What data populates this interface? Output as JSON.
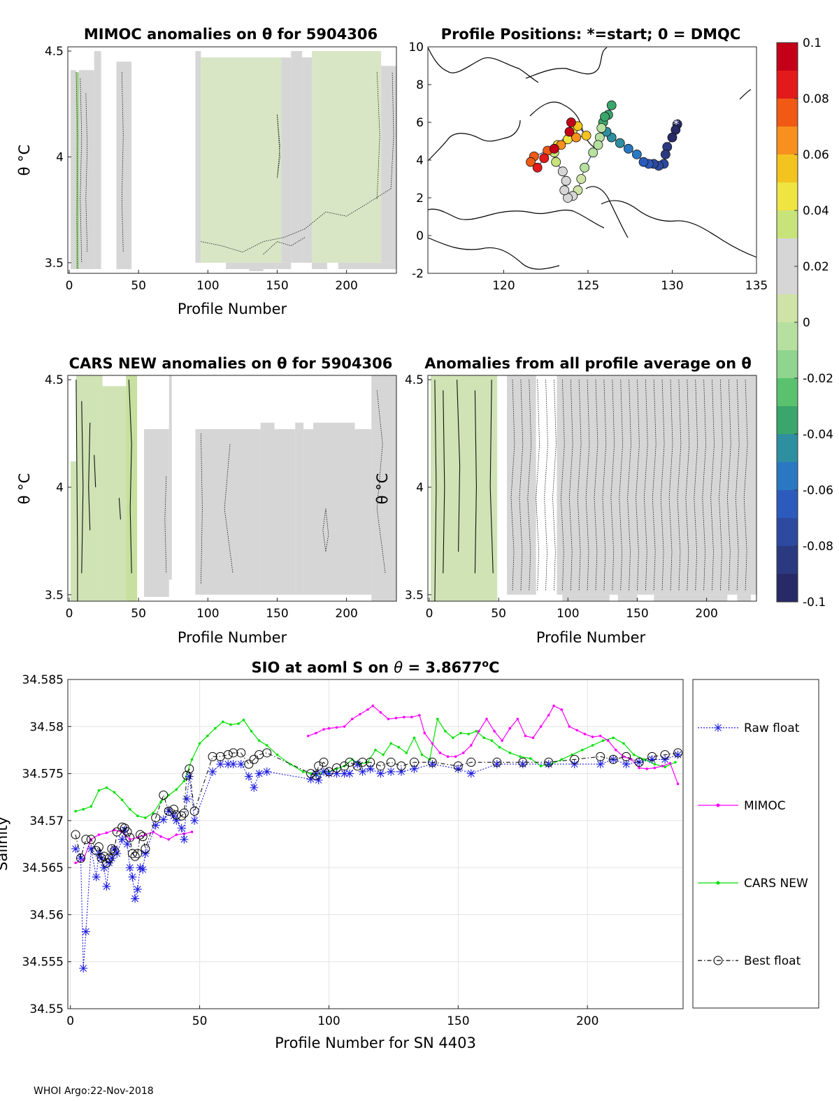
{
  "chart_data": [
    {
      "type": "heatmap",
      "title": "MIMOC anomalies on θ  for 5904306",
      "xlabel": "Profile Number",
      "ylabel": "θ °C",
      "xlim": [
        -1,
        236
      ],
      "ylim": [
        3.45,
        4.52
      ],
      "xticks": [
        0,
        50,
        100,
        150,
        200
      ],
      "yticks": [
        3.5,
        4,
        4.5
      ],
      "ytick_labels": [
        "3.5",
        "4",
        "4.5"
      ]
    },
    {
      "type": "scatter",
      "title": "Profile Positions: *=start; 0 = DMQC",
      "xlim": [
        115.5,
        135
      ],
      "ylim": [
        -2,
        10
      ],
      "xticks": [
        120,
        125,
        130,
        135
      ],
      "yticks": [
        -2,
        0,
        2,
        4,
        6,
        8,
        10
      ],
      "track": [
        [
          130.3,
          5.9
        ],
        [
          130.2,
          5.6
        ],
        [
          130.0,
          5.2
        ],
        [
          129.7,
          4.7
        ],
        [
          129.6,
          4.3
        ],
        [
          129.5,
          3.8
        ],
        [
          129.2,
          3.7
        ],
        [
          128.9,
          3.8
        ],
        [
          128.6,
          3.8
        ],
        [
          128.3,
          3.9
        ],
        [
          127.9,
          4.3
        ],
        [
          127.4,
          4.6
        ],
        [
          126.9,
          4.9
        ],
        [
          126.4,
          5.2
        ],
        [
          126.1,
          5.5
        ],
        [
          125.9,
          6.0
        ],
        [
          126.2,
          6.4
        ],
        [
          126.4,
          6.9
        ],
        [
          126.0,
          6.3
        ],
        [
          125.8,
          5.7
        ],
        [
          125.7,
          5.2
        ],
        [
          125.6,
          4.8
        ],
        [
          125.3,
          4.4
        ],
        [
          124.8,
          3.6
        ],
        [
          124.6,
          3.0
        ],
        [
          124.4,
          2.4
        ],
        [
          124.1,
          2.1
        ],
        [
          123.8,
          2.0
        ],
        [
          123.6,
          2.4
        ],
        [
          123.7,
          2.9
        ],
        [
          123.5,
          3.4
        ],
        [
          123.1,
          3.9
        ],
        [
          123.0,
          4.4
        ],
        [
          123.2,
          4.8
        ],
        [
          123.8,
          5.1
        ],
        [
          124.1,
          5.6
        ],
        [
          124.4,
          5.8
        ],
        [
          124.9,
          5.3
        ],
        [
          124.3,
          5.2
        ],
        [
          123.4,
          4.8
        ],
        [
          122.6,
          4.5
        ],
        [
          121.8,
          4.2
        ],
        [
          121.6,
          3.9
        ],
        [
          122.0,
          3.6
        ],
        [
          122.4,
          4.1
        ],
        [
          123.0,
          4.6
        ],
        [
          123.9,
          5.5
        ],
        [
          124.0,
          6.0
        ]
      ]
    },
    {
      "type": "heatmap",
      "title": "CARS NEW anomalies on θ for 5904306",
      "xlabel": "Profile Number",
      "ylabel": "θ °C",
      "xlim": [
        -1,
        236
      ],
      "ylim": [
        3.47,
        4.52
      ],
      "xticks": [
        0,
        50,
        100,
        150,
        200
      ],
      "yticks": [
        3.5,
        4,
        4.5
      ],
      "ytick_labels": [
        "3.5",
        "4",
        "4.5"
      ]
    },
    {
      "type": "heatmap",
      "title": "Anomalies from all profile average on θ",
      "xlabel": "Profile Number",
      "ylabel": "θ °C",
      "xlim": [
        -1,
        236
      ],
      "ylim": [
        3.47,
        4.52
      ],
      "xticks": [
        0,
        50,
        100,
        150,
        200
      ],
      "yticks": [
        3.5,
        4,
        4.5
      ],
      "ytick_labels": [
        "3.5",
        "4",
        "4.5"
      ]
    },
    {
      "type": "colorbar",
      "ylim": [
        -0.1,
        0.1
      ],
      "ticks": [
        0.1,
        0.08,
        0.06,
        0.04,
        0.02,
        0,
        -0.02,
        -0.04,
        -0.06,
        -0.08,
        -0.1
      ],
      "tick_labels": [
        "0.1",
        "0.08",
        "0.06",
        "0.04",
        "0.02",
        "0",
        "-0.02",
        "-0.04",
        "-0.06",
        "-0.08",
        "-0.1"
      ],
      "colors": [
        "#c40018",
        "#e31a1c",
        "#f05a14",
        "#f7901e",
        "#f3c41f",
        "#efe442",
        "#c8e37a",
        "#d6d6d6",
        "#d6d6d6",
        "#cfe3a6",
        "#b6e0a0",
        "#8fd48f",
        "#5ac26f",
        "#3aa66b",
        "#2e8fa0",
        "#2a78c2",
        "#2d5bbd",
        "#2d4aa0",
        "#2b3a80",
        "#272a66"
      ]
    },
    {
      "type": "line",
      "title": "SIO at aoml S on θ = 3.8677°C",
      "title_parts": [
        "SIO at aoml S on ",
        "θ",
        " = 3.8677",
        "o",
        "C"
      ],
      "xlabel": "Profile Number for SN 4403",
      "ylabel": "Salinity",
      "xlim": [
        -1,
        237
      ],
      "ylim": [
        34.55,
        34.585
      ],
      "xticks": [
        0,
        50,
        100,
        150,
        200
      ],
      "yticks": [
        34.55,
        34.555,
        34.56,
        34.565,
        34.57,
        34.575,
        34.58,
        34.585
      ],
      "ytick_labels": [
        "34.55",
        "34.555",
        "34.56",
        "34.565",
        "34.57",
        "34.575",
        "34.58",
        "34.585"
      ],
      "grid": true,
      "legend_position": "right",
      "series": [
        {
          "name": "Raw float",
          "color": "#1f1fe0",
          "x": [
            2,
            4,
            5,
            6,
            8,
            10,
            11,
            12,
            13,
            14,
            15,
            16,
            17,
            18,
            20,
            21,
            22,
            23,
            24,
            25,
            26,
            27,
            28,
            29,
            33,
            36,
            38,
            40,
            41,
            43,
            44,
            45,
            46,
            48,
            55,
            58,
            61,
            63,
            66,
            69,
            71,
            73,
            76,
            93,
            95,
            96,
            98,
            100,
            103,
            106,
            108,
            111,
            113,
            116,
            120,
            124,
            128,
            133,
            140,
            150,
            155,
            165,
            175,
            185,
            195,
            205,
            210,
            215,
            220,
            225,
            230,
            235
          ],
          "y": [
            34.567,
            34.566,
            34.5543,
            34.5582,
            34.567,
            34.564,
            34.5665,
            34.566,
            34.565,
            34.563,
            34.5655,
            34.566,
            34.567,
            34.5665,
            34.568,
            34.569,
            34.5675,
            34.565,
            34.564,
            34.5617,
            34.5627,
            34.565,
            34.5648,
            34.5665,
            34.5695,
            34.5701,
            34.571,
            34.5705,
            34.57,
            34.5692,
            34.568,
            34.5723,
            34.5747,
            34.57,
            34.5752,
            34.576,
            34.576,
            34.576,
            34.576,
            34.5747,
            34.5735,
            34.575,
            34.5752,
            34.5744,
            34.575,
            34.5743,
            34.5752,
            34.575,
            34.575,
            34.575,
            34.575,
            34.576,
            34.5752,
            34.5755,
            34.575,
            34.5752,
            34.5752,
            34.5755,
            34.576,
            34.5755,
            34.575,
            34.576,
            34.576,
            34.576,
            34.576,
            34.576,
            34.5765,
            34.576,
            34.5762,
            34.5765,
            34.5765,
            34.577
          ]
        },
        {
          "name": "MIMOC",
          "color": "#ff00ff",
          "x": [
            2,
            5,
            8,
            11,
            14,
            17,
            20,
            23,
            26,
            29,
            32,
            35,
            38,
            41,
            44,
            47,
            null,
            92,
            95,
            98,
            100,
            103,
            106,
            109,
            112,
            115,
            117,
            120,
            123,
            126,
            129,
            132,
            135,
            137,
            140,
            143,
            146,
            149,
            152,
            155,
            158,
            161,
            164,
            167,
            170,
            173,
            176,
            179,
            182,
            185,
            187,
            190,
            193,
            196,
            199,
            202,
            205,
            208,
            211,
            214,
            217,
            220,
            223,
            226,
            229,
            232,
            235
          ],
          "y": [
            34.5655,
            34.5658,
            34.568,
            34.5685,
            34.5687,
            34.569,
            34.5688,
            34.568,
            34.5682,
            34.5685,
            34.5688,
            34.5683,
            34.568,
            34.5685,
            34.5686,
            34.5688,
            null,
            34.579,
            34.5793,
            34.5797,
            34.5798,
            34.5799,
            34.58,
            34.5808,
            34.5813,
            34.5818,
            34.5822,
            34.5815,
            34.5808,
            34.5809,
            34.581,
            34.581,
            34.5812,
            34.5793,
            34.5782,
            34.5772,
            34.5768,
            34.5768,
            34.5772,
            34.578,
            34.5795,
            34.5808,
            34.5795,
            34.5785,
            34.5798,
            34.5808,
            34.579,
            34.5788,
            34.58,
            34.5812,
            34.5822,
            34.5818,
            34.58,
            34.5796,
            34.5792,
            34.5789,
            34.579,
            34.5785,
            34.5775,
            34.5768,
            34.5765,
            34.5756,
            34.5755,
            34.5756,
            34.5758,
            34.5761,
            34.5739
          ]
        },
        {
          "name": "CARS NEW",
          "color": "#00e000",
          "x": [
            2,
            5,
            8,
            11,
            14,
            17,
            20,
            23,
            26,
            29,
            32,
            35,
            38,
            41,
            44,
            47,
            50,
            53,
            56,
            59,
            62,
            65,
            67,
            70,
            73,
            76,
            80,
            85,
            90,
            93,
            95,
            98,
            100,
            103,
            106,
            109,
            112,
            115,
            118,
            121,
            124,
            127,
            130,
            133,
            136,
            139,
            142,
            145,
            148,
            151,
            154,
            157,
            160,
            163,
            166,
            170,
            174,
            178,
            182,
            186,
            190,
            194,
            198,
            202,
            206,
            210,
            214,
            218,
            222,
            226,
            230,
            234
          ],
          "y": [
            34.571,
            34.5712,
            34.5715,
            34.5732,
            34.5735,
            34.573,
            34.5722,
            34.5712,
            34.5705,
            34.5703,
            34.5708,
            34.572,
            34.5727,
            34.5733,
            34.5742,
            34.5765,
            34.5782,
            34.579,
            34.5798,
            34.5805,
            34.5802,
            34.5803,
            34.5807,
            34.5795,
            34.5785,
            34.578,
            34.577,
            34.576,
            34.5752,
            34.575,
            34.5748,
            34.5752,
            34.5752,
            34.5755,
            34.5758,
            34.5765,
            34.576,
            34.5762,
            34.5775,
            34.577,
            34.5782,
            34.5778,
            34.5772,
            34.5788,
            34.577,
            34.5765,
            34.5808,
            34.5795,
            34.5788,
            34.5793,
            34.5792,
            34.5795,
            34.5788,
            34.5785,
            34.5778,
            34.5772,
            34.5768,
            34.5766,
            34.5758,
            34.576,
            34.5765,
            34.577,
            34.5775,
            34.578,
            34.5785,
            34.5788,
            34.5782,
            34.577,
            34.5765,
            34.576,
            34.5757,
            34.5762
          ]
        },
        {
          "name": "Best float",
          "color": "#000000",
          "x": [
            2,
            4,
            6,
            8,
            10,
            11,
            12,
            13,
            14,
            15,
            16,
            17,
            18,
            20,
            21,
            22,
            23,
            24,
            25,
            26,
            27,
            28,
            29,
            33,
            36,
            38,
            40,
            41,
            43,
            44,
            45,
            46,
            48,
            55,
            58,
            61,
            63,
            66,
            69,
            71,
            73,
            76,
            93,
            95,
            96,
            98,
            100,
            103,
            106,
            108,
            111,
            113,
            116,
            120,
            124,
            128,
            133,
            140,
            150,
            155,
            165,
            175,
            185,
            195,
            205,
            210,
            215,
            220,
            225,
            230,
            235
          ],
          "y": [
            34.5685,
            34.566,
            34.568,
            34.568,
            34.5668,
            34.5672,
            34.566,
            34.5662,
            34.5655,
            34.566,
            34.567,
            34.5668,
            34.5688,
            34.5693,
            34.5692,
            34.5688,
            34.5682,
            34.5665,
            34.5662,
            34.5665,
            34.5685,
            34.5683,
            34.567,
            34.5703,
            34.5727,
            34.571,
            34.5712,
            34.5706,
            34.5705,
            34.5708,
            34.5748,
            34.5755,
            34.571,
            34.5768,
            34.5768,
            34.577,
            34.5772,
            34.5772,
            34.576,
            34.5765,
            34.577,
            34.5772,
            34.575,
            34.5748,
            34.5758,
            34.5762,
            34.5752,
            34.5756,
            34.5758,
            34.5762,
            34.5758,
            34.5762,
            34.5762,
            34.5758,
            34.5762,
            34.5758,
            34.5762,
            34.5762,
            34.5758,
            34.5762,
            34.5762,
            34.5762,
            34.5762,
            34.5765,
            34.5768,
            34.5765,
            34.5768,
            34.5762,
            34.5768,
            34.577,
            34.5772
          ]
        }
      ]
    }
  ],
  "footer": {
    "stamp": "WHOI Argo:22-Nov-2018"
  }
}
